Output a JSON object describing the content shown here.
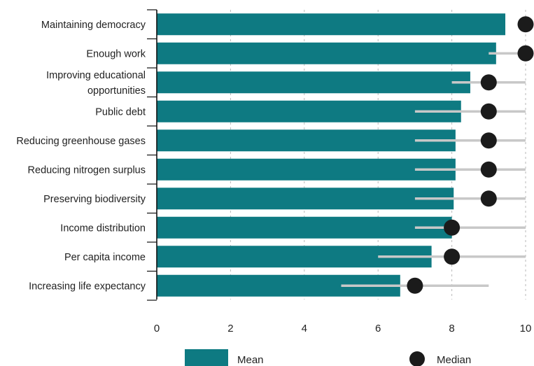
{
  "chart_data": {
    "type": "bar",
    "orientation": "horizontal",
    "categories": [
      "Maintaining democracy",
      "Enough work",
      "Improving educational opportunities",
      "Public debt",
      "Reducing greenhouse gases",
      "Reducing nitrogen surplus",
      "Preserving biodiversity",
      "Income distribution",
      "Per capita income",
      "Increasing life expectancy"
    ],
    "category_lines": [
      [
        "Maintaining democracy"
      ],
      [
        "Enough work"
      ],
      [
        "Improving educational",
        "opportunities"
      ],
      [
        "Public debt"
      ],
      [
        "Reducing greenhouse gases"
      ],
      [
        "Reducing nitrogen surplus"
      ],
      [
        "Preserving biodiversity"
      ],
      [
        "Income distribution"
      ],
      [
        "Per capita income"
      ],
      [
        "Increasing life expectancy"
      ]
    ],
    "series": [
      {
        "name": "Mean",
        "values": [
          9.45,
          9.2,
          8.5,
          8.25,
          8.1,
          8.1,
          8.05,
          8.0,
          7.45,
          6.6
        ]
      },
      {
        "name": "Median",
        "values": [
          10,
          10,
          9,
          9,
          9,
          9,
          9,
          8,
          8,
          7
        ]
      }
    ],
    "ranges": [
      [
        10,
        10
      ],
      [
        9,
        10
      ],
      [
        8,
        10
      ],
      [
        7,
        10
      ],
      [
        7,
        10
      ],
      [
        7,
        10
      ],
      [
        7,
        10
      ],
      [
        7,
        10
      ],
      [
        6,
        10
      ],
      [
        5,
        9
      ]
    ],
    "xlim": [
      0,
      10
    ],
    "xticks": [
      "0",
      "2",
      "4",
      "6",
      "8",
      "10"
    ],
    "grid": "vertical dashed",
    "legend": {
      "placement": "bottom",
      "items": [
        "Mean",
        "Median"
      ]
    },
    "colors": {
      "bar": "#0e7a82",
      "median": "#1b1b1b",
      "range": "#c8c8c8",
      "grid": "#b9b9b9",
      "axis": "#111111"
    }
  }
}
